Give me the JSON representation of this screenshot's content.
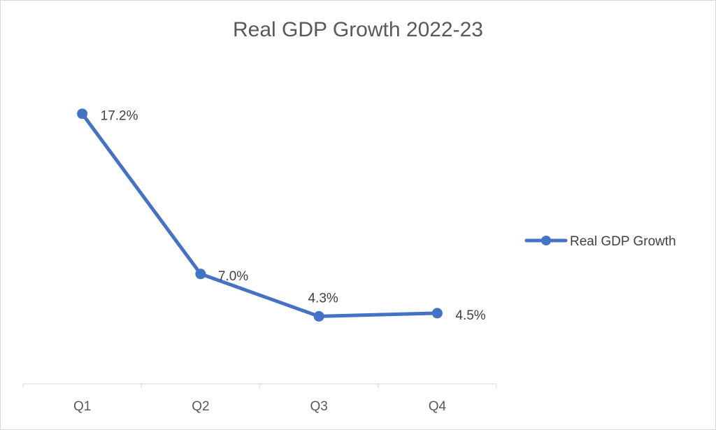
{
  "chart_data": {
    "type": "line",
    "title": "Real GDP Growth 2022-23",
    "categories": [
      "Q1",
      "Q2",
      "Q3",
      "Q4"
    ],
    "series": [
      {
        "name": "Real GDP Growth",
        "values": [
          17.2,
          7.0,
          4.3,
          4.5
        ],
        "labels": [
          "17.2%",
          "7.0%",
          "4.3%",
          "4.5%"
        ],
        "color": "#4472c4"
      }
    ],
    "ylim": [
      0,
      25
    ],
    "grid": false,
    "legend": "right"
  }
}
